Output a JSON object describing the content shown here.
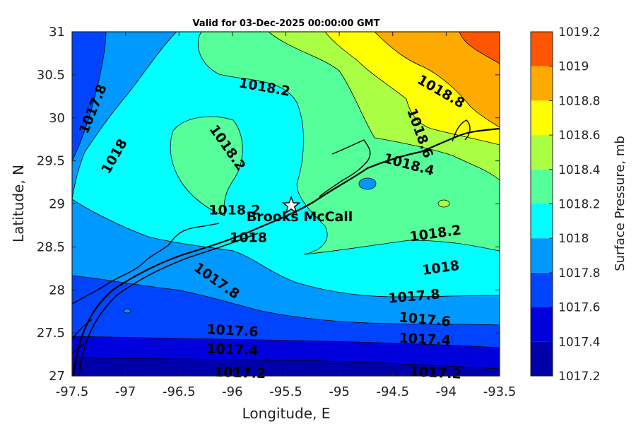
{
  "title": "Valid for 03-Dec-2025 00:00:00 GMT",
  "xlabel": "Longitude, E",
  "ylabel": "Latitude, N",
  "colorbar_label": "Surface Pressure, mb",
  "station_label": "Brooks McCall",
  "x_ticks": [
    "-97.5",
    "-97",
    "-96.5",
    "-96",
    "-95.5",
    "-95",
    "-94.5",
    "-94",
    "-93.5"
  ],
  "y_ticks": [
    "27",
    "27.5",
    "28",
    "28.5",
    "29",
    "29.5",
    "30",
    "30.5",
    "31"
  ],
  "colorbar_ticks": [
    "1017.2",
    "1017.4",
    "1017.6",
    "1017.8",
    "1018",
    "1018.2",
    "1018.4",
    "1018.6",
    "1018.8",
    "1019",
    "1019.2"
  ],
  "colors": {
    "level_1017_2": "#0000aa",
    "level_1017_4": "#0000dd",
    "level_1017_6": "#0044ff",
    "level_1017_8": "#0099ff",
    "level_1018": "#00ffff",
    "level_1018_2": "#55ff99",
    "level_1018_4": "#aaff44",
    "level_1018_6": "#ffff00",
    "level_1018_8": "#ffaa00",
    "level_1019": "#ff5500",
    "level_1019_2": "#ff0000"
  },
  "chart_data": {
    "type": "heatmap",
    "title": "Valid for 03-Dec-2025 00:00:00 GMT",
    "xlabel": "Longitude, E",
    "ylabel": "Latitude, N",
    "xlim": [
      -97.5,
      -93.5
    ],
    "ylim": [
      27,
      31
    ],
    "colorbar": {
      "label": "Surface Pressure, mb",
      "range": [
        1017.2,
        1019.2
      ],
      "levels": [
        1017.2,
        1017.4,
        1017.6,
        1017.8,
        1018,
        1018.2,
        1018.4,
        1018.6,
        1018.8,
        1019,
        1019.2
      ]
    },
    "contour_labels": [
      {
        "text": "1017.8",
        "lon": -97.3,
        "lat": 30.1
      },
      {
        "text": "1018",
        "lon": -97.1,
        "lat": 29.55
      },
      {
        "text": "1018.2",
        "lon": -95.7,
        "lat": 30.35
      },
      {
        "text": "1018.2",
        "lon": -96.05,
        "lat": 29.65
      },
      {
        "text": "1018.8",
        "lon": -94.05,
        "lat": 30.3
      },
      {
        "text": "1018.6",
        "lon": -94.25,
        "lat": 29.82
      },
      {
        "text": "1018.4",
        "lon": -94.35,
        "lat": 29.45
      },
      {
        "text": "1018.2",
        "lon": -95.98,
        "lat": 28.92
      },
      {
        "text": "1018",
        "lon": -95.85,
        "lat": 28.6
      },
      {
        "text": "1018.2",
        "lon": -94.1,
        "lat": 28.65
      },
      {
        "text": "1018",
        "lon": -94.05,
        "lat": 28.25
      },
      {
        "text": "1017.8",
        "lon": -96.15,
        "lat": 28.1
      },
      {
        "text": "1017.8",
        "lon": -94.3,
        "lat": 27.92
      },
      {
        "text": "1017.6",
        "lon": -94.2,
        "lat": 27.65
      },
      {
        "text": "1017.6",
        "lon": -96.0,
        "lat": 27.52
      },
      {
        "text": "1017.4",
        "lon": -94.2,
        "lat": 27.42
      },
      {
        "text": "1017.4",
        "lon": -96.0,
        "lat": 27.3
      },
      {
        "text": "1017.2",
        "lon": -95.93,
        "lat": 27.03
      },
      {
        "text": "1017.2",
        "lon": -94.1,
        "lat": 27.03
      }
    ],
    "station": {
      "name": "Brooks McCall",
      "lon": -95.45,
      "lat": 28.98
    }
  }
}
